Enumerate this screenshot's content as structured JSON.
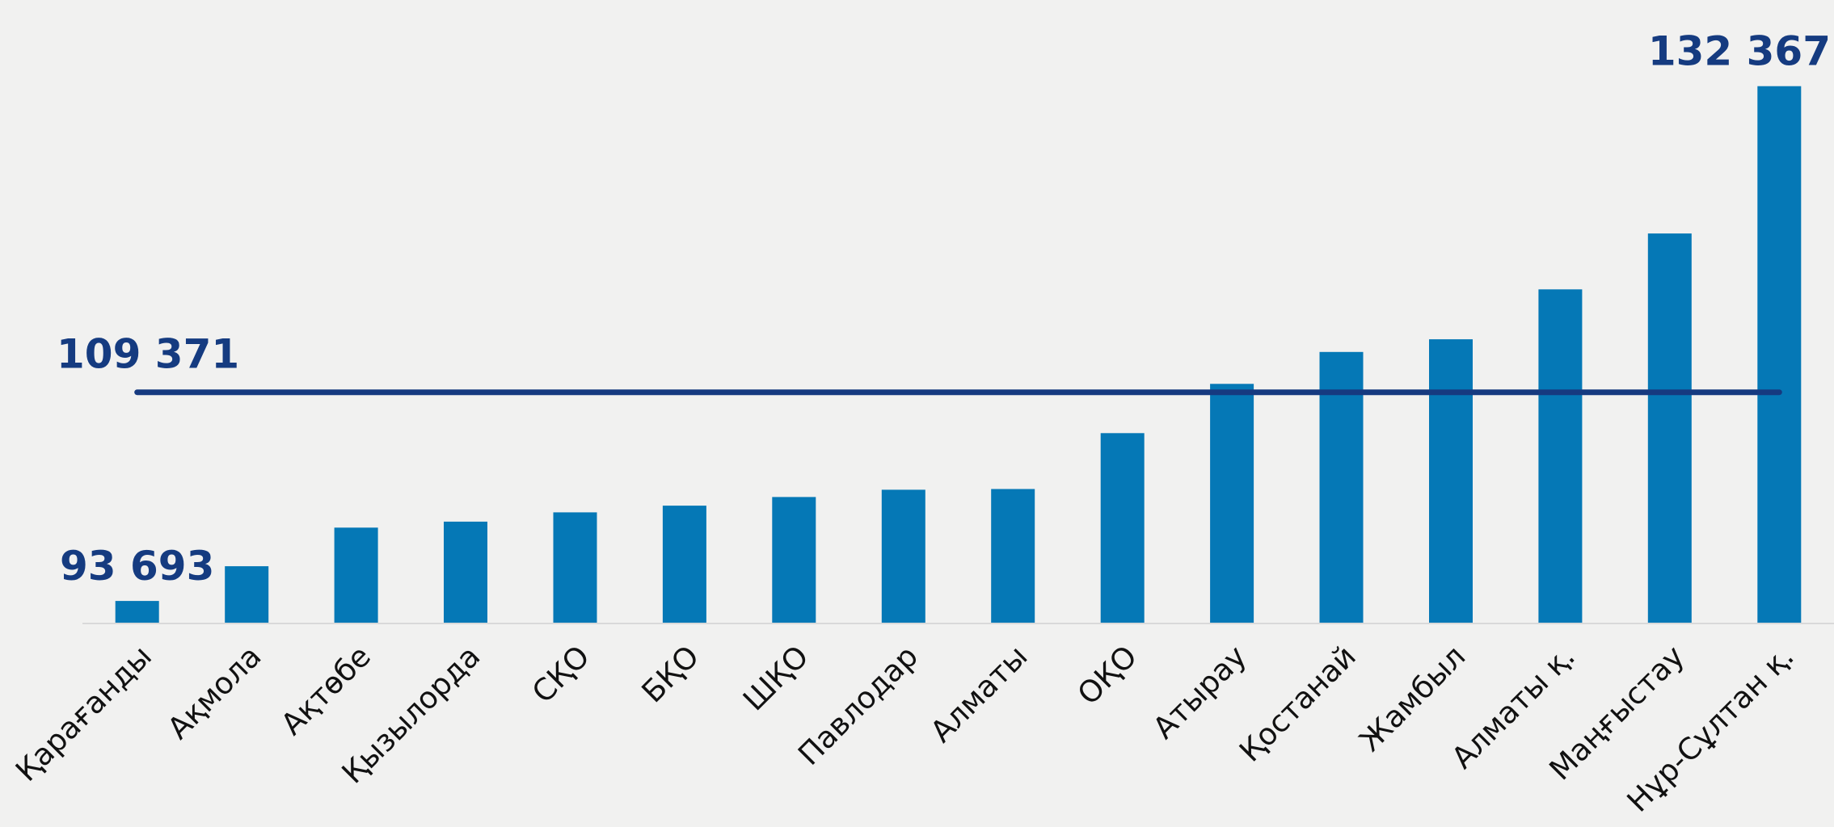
{
  "chart_data": {
    "type": "bar",
    "categories": [
      "Қарағанды",
      "Ақмола",
      "Ақтөбе",
      "Қызылорда",
      "СҚО",
      "БҚО",
      "ШҚО",
      "Павлодар",
      "Алматы",
      "ОҚО",
      "Атырау",
      "Қостанай",
      "Жамбыл",
      "Алматы қ.",
      "Маңғыстау",
      "Нұр-Сұлтан қ."
    ],
    "values": [
      93693,
      96300,
      99200,
      99650,
      100350,
      100850,
      101500,
      102050,
      102100,
      106300,
      110000,
      112400,
      113350,
      117100,
      121300,
      132367
    ],
    "ylim": [
      92000,
      133500
    ],
    "average": {
      "value": 109371,
      "label": "109 371"
    },
    "data_labels": [
      {
        "category_index": 0,
        "text": "93 693"
      },
      {
        "category_index": 15,
        "text": "132 367"
      }
    ],
    "colors": {
      "bar": "#0578b6",
      "average_line": "#163a80",
      "label": "#153b80"
    },
    "grid": false,
    "legend": "none"
  }
}
